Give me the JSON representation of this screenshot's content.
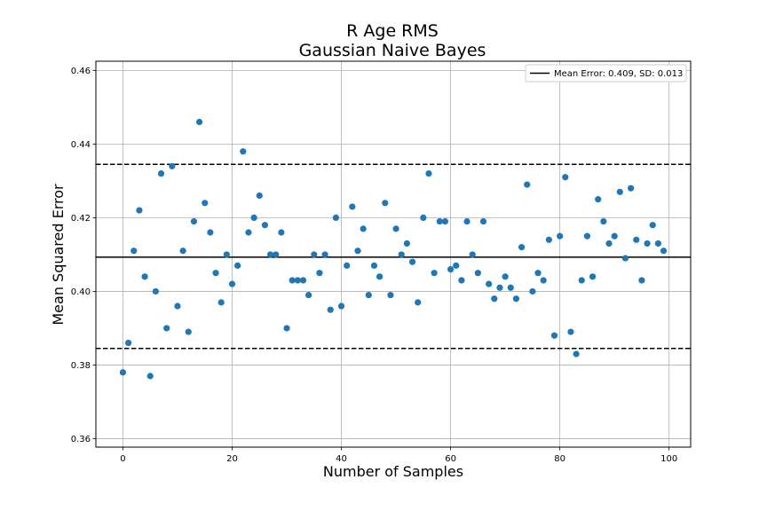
{
  "chart_data": {
    "type": "scatter",
    "title": "R Age RMS",
    "subtitle": "Gaussian Naive Bayes",
    "xlabel": "Number of Samples",
    "ylabel": "Mean Squared Error",
    "xlim": [
      -4.95,
      103.95
    ],
    "ylim": [
      0.3577,
      0.4625
    ],
    "xticks": [
      0,
      20,
      40,
      60,
      80,
      100
    ],
    "xtick_labels": [
      "0",
      "20",
      "40",
      "60",
      "80",
      "100"
    ],
    "yticks": [
      0.36,
      0.38,
      0.4,
      0.42,
      0.44,
      0.46
    ],
    "ytick_labels": [
      "0.36",
      "0.38",
      "0.40",
      "0.42",
      "0.44",
      "0.46"
    ],
    "grid": true,
    "legend_position": "top-right",
    "legend_label": "Mean Error: 0.409, SD: 0.013",
    "mean": 0.4093,
    "upper": 0.4345,
    "lower": 0.3845,
    "point_color": "#1f77b4",
    "x": [
      0,
      1,
      2,
      3,
      4,
      5,
      6,
      7,
      8,
      9,
      10,
      11,
      12,
      13,
      14,
      15,
      16,
      17,
      18,
      19,
      20,
      21,
      22,
      23,
      24,
      25,
      26,
      27,
      28,
      29,
      30,
      31,
      32,
      33,
      34,
      35,
      36,
      37,
      38,
      39,
      40,
      41,
      42,
      43,
      44,
      45,
      46,
      47,
      48,
      49,
      50,
      51,
      52,
      53,
      54,
      55,
      56,
      57,
      58,
      59,
      60,
      61,
      62,
      63,
      64,
      65,
      66,
      67,
      68,
      69,
      70,
      71,
      72,
      73,
      74,
      75,
      76,
      77,
      78,
      79,
      80,
      81,
      82,
      83,
      84,
      85,
      86,
      87,
      88,
      89,
      90,
      91,
      92,
      93,
      94,
      95,
      96,
      97,
      98,
      99
    ],
    "y": [
      0.378,
      0.386,
      0.411,
      0.422,
      0.404,
      0.377,
      0.4,
      0.432,
      0.39,
      0.434,
      0.396,
      0.411,
      0.389,
      0.419,
      0.446,
      0.424,
      0.416,
      0.405,
      0.397,
      0.41,
      0.402,
      0.407,
      0.438,
      0.416,
      0.42,
      0.426,
      0.418,
      0.41,
      0.41,
      0.416,
      0.39,
      0.403,
      0.403,
      0.403,
      0.399,
      0.41,
      0.405,
      0.41,
      0.395,
      0.42,
      0.396,
      0.407,
      0.423,
      0.411,
      0.417,
      0.399,
      0.407,
      0.404,
      0.424,
      0.399,
      0.417,
      0.41,
      0.413,
      0.408,
      0.397,
      0.42,
      0.432,
      0.405,
      0.419,
      0.419,
      0.406,
      0.407,
      0.403,
      0.419,
      0.41,
      0.405,
      0.419,
      0.402,
      0.398,
      0.401,
      0.404,
      0.401,
      0.398,
      0.412,
      0.429,
      0.4,
      0.405,
      0.403,
      0.414,
      0.388,
      0.415,
      0.431,
      0.389,
      0.383,
      0.403,
      0.415,
      0.404,
      0.425,
      0.419,
      0.413,
      0.415,
      0.427,
      0.409,
      0.428,
      0.414,
      0.403,
      0.413,
      0.418,
      0.413,
      0.411
    ]
  }
}
